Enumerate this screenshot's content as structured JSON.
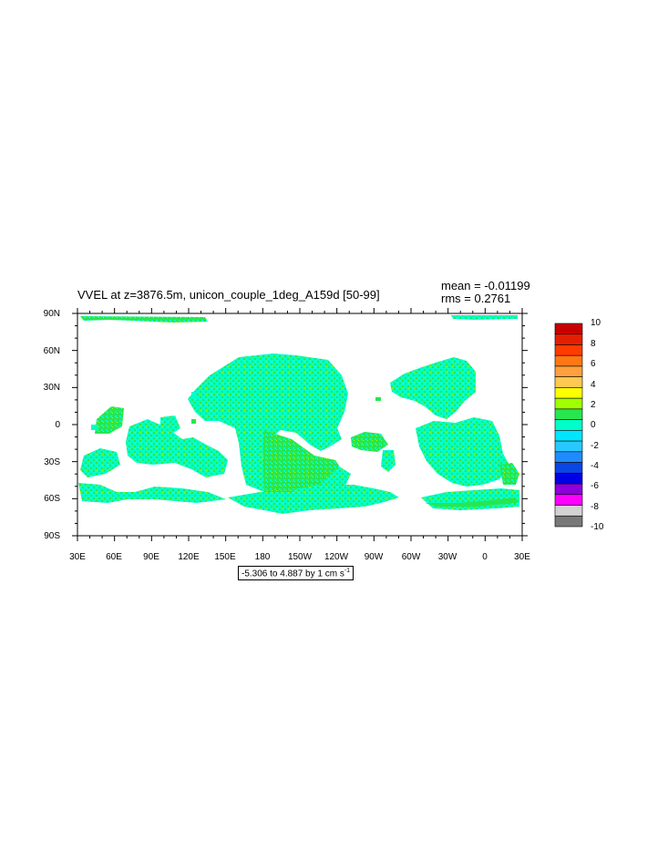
{
  "title": "VVEL at z=3876.5m, unicon_couple_1deg_A159d [50-99]",
  "mean_label": "mean = -0.01199",
  "rms_label": "rms = 0.2761",
  "range_text": "-5.306 to 4.887 by 1 cm s",
  "range_unit_exponent": "-1",
  "y_ticks": [
    "90N",
    "60N",
    "30N",
    "0",
    "30S",
    "60S",
    "90S"
  ],
  "x_ticks": [
    "30E",
    "60E",
    "90E",
    "120E",
    "150E",
    "180",
    "150W",
    "120W",
    "90W",
    "60W",
    "30W",
    "0",
    "30E"
  ],
  "colorbar": {
    "labels": [
      "10",
      "8",
      "6",
      "4",
      "2",
      "0",
      "-2",
      "-4",
      "-6",
      "-8",
      "-10"
    ],
    "colors": [
      "#c80000",
      "#e61e00",
      "#ff3c00",
      "#ff7814",
      "#ffa03c",
      "#ffc850",
      "#ffff00",
      "#a0ff00",
      "#28e650",
      "#00ffc8",
      "#00e6ff",
      "#28c8ff",
      "#1e8cff",
      "#0a46e6",
      "#0000e6",
      "#8c00dc",
      "#ff00ff",
      "#d2d2d2",
      "#787878"
    ]
  },
  "map_colors": {
    "primary": "#00ffc8",
    "secondary": "#28e650",
    "accent": "#a0ff00"
  }
}
